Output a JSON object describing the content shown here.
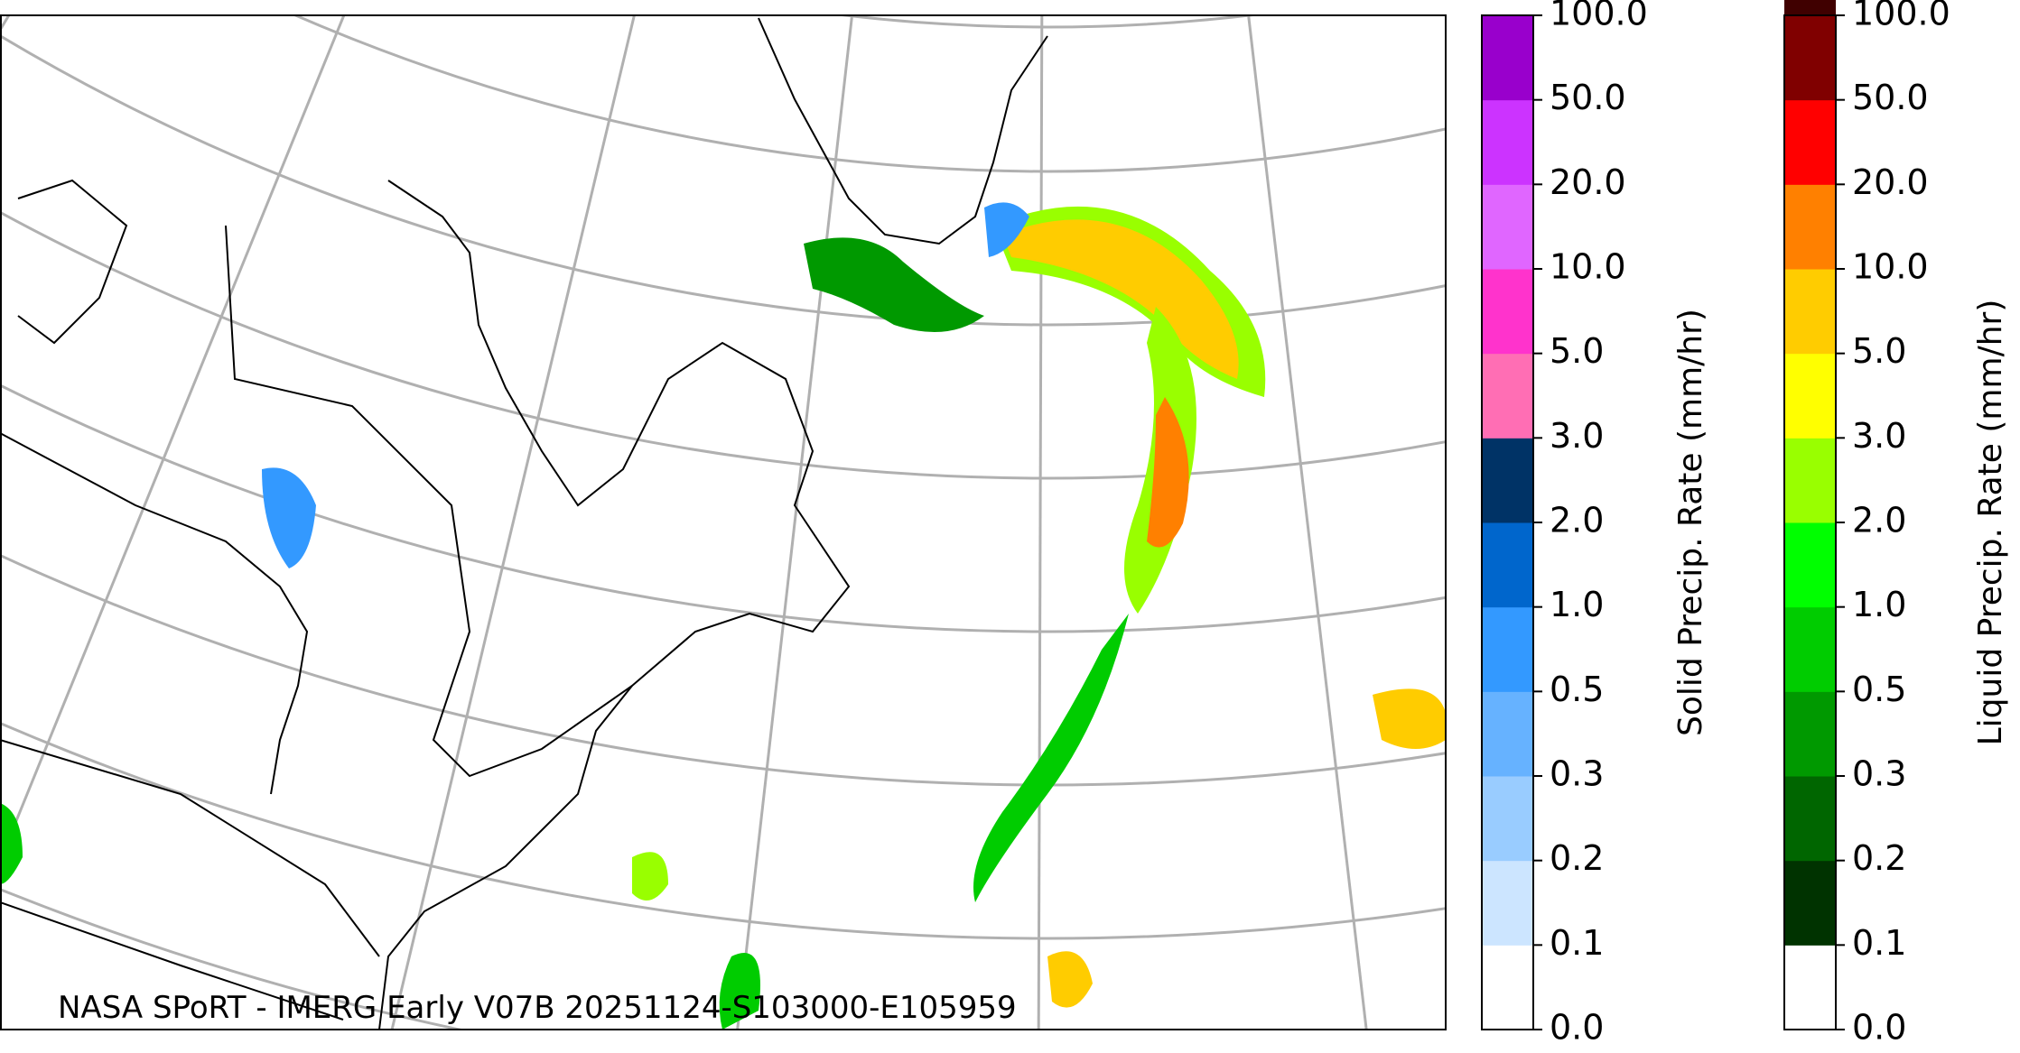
{
  "map": {
    "credit": "NASA SPoRT - IMERG Early V07B 20251124-S103000-E105959"
  },
  "colorbars": [
    {
      "label": "Solid Precip. Rate (mm/hr)",
      "ticks": [
        "0.0",
        "0.1",
        "0.2",
        "0.3",
        "0.5",
        "1.0",
        "2.0",
        "3.0",
        "5.0",
        "10.0",
        "20.0",
        "50.0",
        "100.0"
      ],
      "colors": [
        "#ffffff",
        "#cce5ff",
        "#99ccff",
        "#66b2ff",
        "#3399ff",
        "#0066cc",
        "#003366",
        "#ff6eb4",
        "#ff33cc",
        "#e066ff",
        "#cc33ff",
        "#9900cc"
      ]
    },
    {
      "label": "Liquid Precip. Rate (mm/hr)",
      "ticks": [
        "0.0",
        "0.1",
        "0.2",
        "0.3",
        "0.5",
        "1.0",
        "2.0",
        "3.0",
        "5.0",
        "10.0",
        "20.0",
        "50.0",
        "100.0"
      ],
      "colors": [
        "#ffffff",
        "#003300",
        "#006600",
        "#009900",
        "#00cc00",
        "#00ff00",
        "#99ff00",
        "#ffff00",
        "#ffcc00",
        "#ff8000",
        "#ff0000",
        "#800000",
        "#400000"
      ]
    }
  ]
}
